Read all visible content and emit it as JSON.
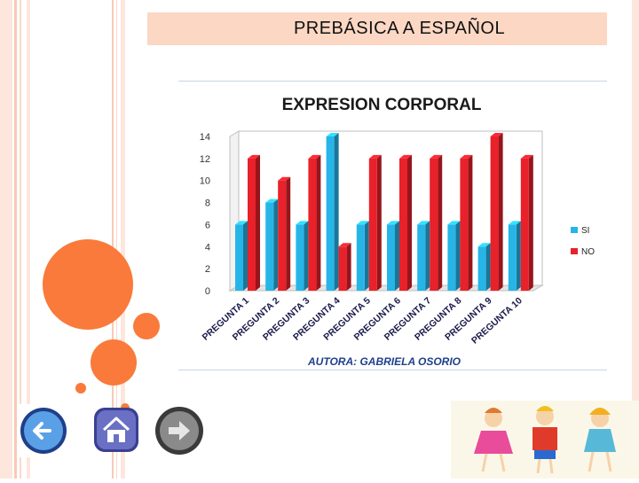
{
  "slide": {
    "title": "PREBÁSICA A ESPAÑOL"
  },
  "colors": {
    "title_bg": "#fbd7c4",
    "accent_orange": "#f97a3a",
    "series_si": "#27b5e8",
    "series_no": "#e8212a"
  },
  "nav": {
    "back_icon": "arrow-left-icon",
    "home_icon": "home-icon",
    "forward_icon": "arrow-right-icon"
  },
  "chart_data": {
    "type": "bar",
    "title": "EXPRESION CORPORAL",
    "subtitle": "AUTORA: GABRIELA OSORIO",
    "categories": [
      "PREGUNTA 1",
      "PREGUNTA 2",
      "PREGUNTA 3",
      "PREGUNTA 4",
      "PREGUNTA 5",
      "PREGUNTA 6",
      "PREGUNTA 7",
      "PREGUNTA 8",
      "PREGUNTA 9",
      "PREGUNTA 10"
    ],
    "series": [
      {
        "name": "SI",
        "color": "#27b5e8",
        "values": [
          6,
          8,
          6,
          14,
          6,
          6,
          6,
          6,
          4,
          6
        ]
      },
      {
        "name": "NO",
        "color": "#e8212a",
        "values": [
          12,
          10,
          12,
          4,
          12,
          12,
          12,
          12,
          14,
          12
        ]
      }
    ],
    "ylim": [
      0,
      14
    ],
    "yticks": [
      0,
      2,
      4,
      6,
      8,
      10,
      12,
      14
    ],
    "legend_position": "right",
    "grid": false,
    "style": "3d"
  }
}
